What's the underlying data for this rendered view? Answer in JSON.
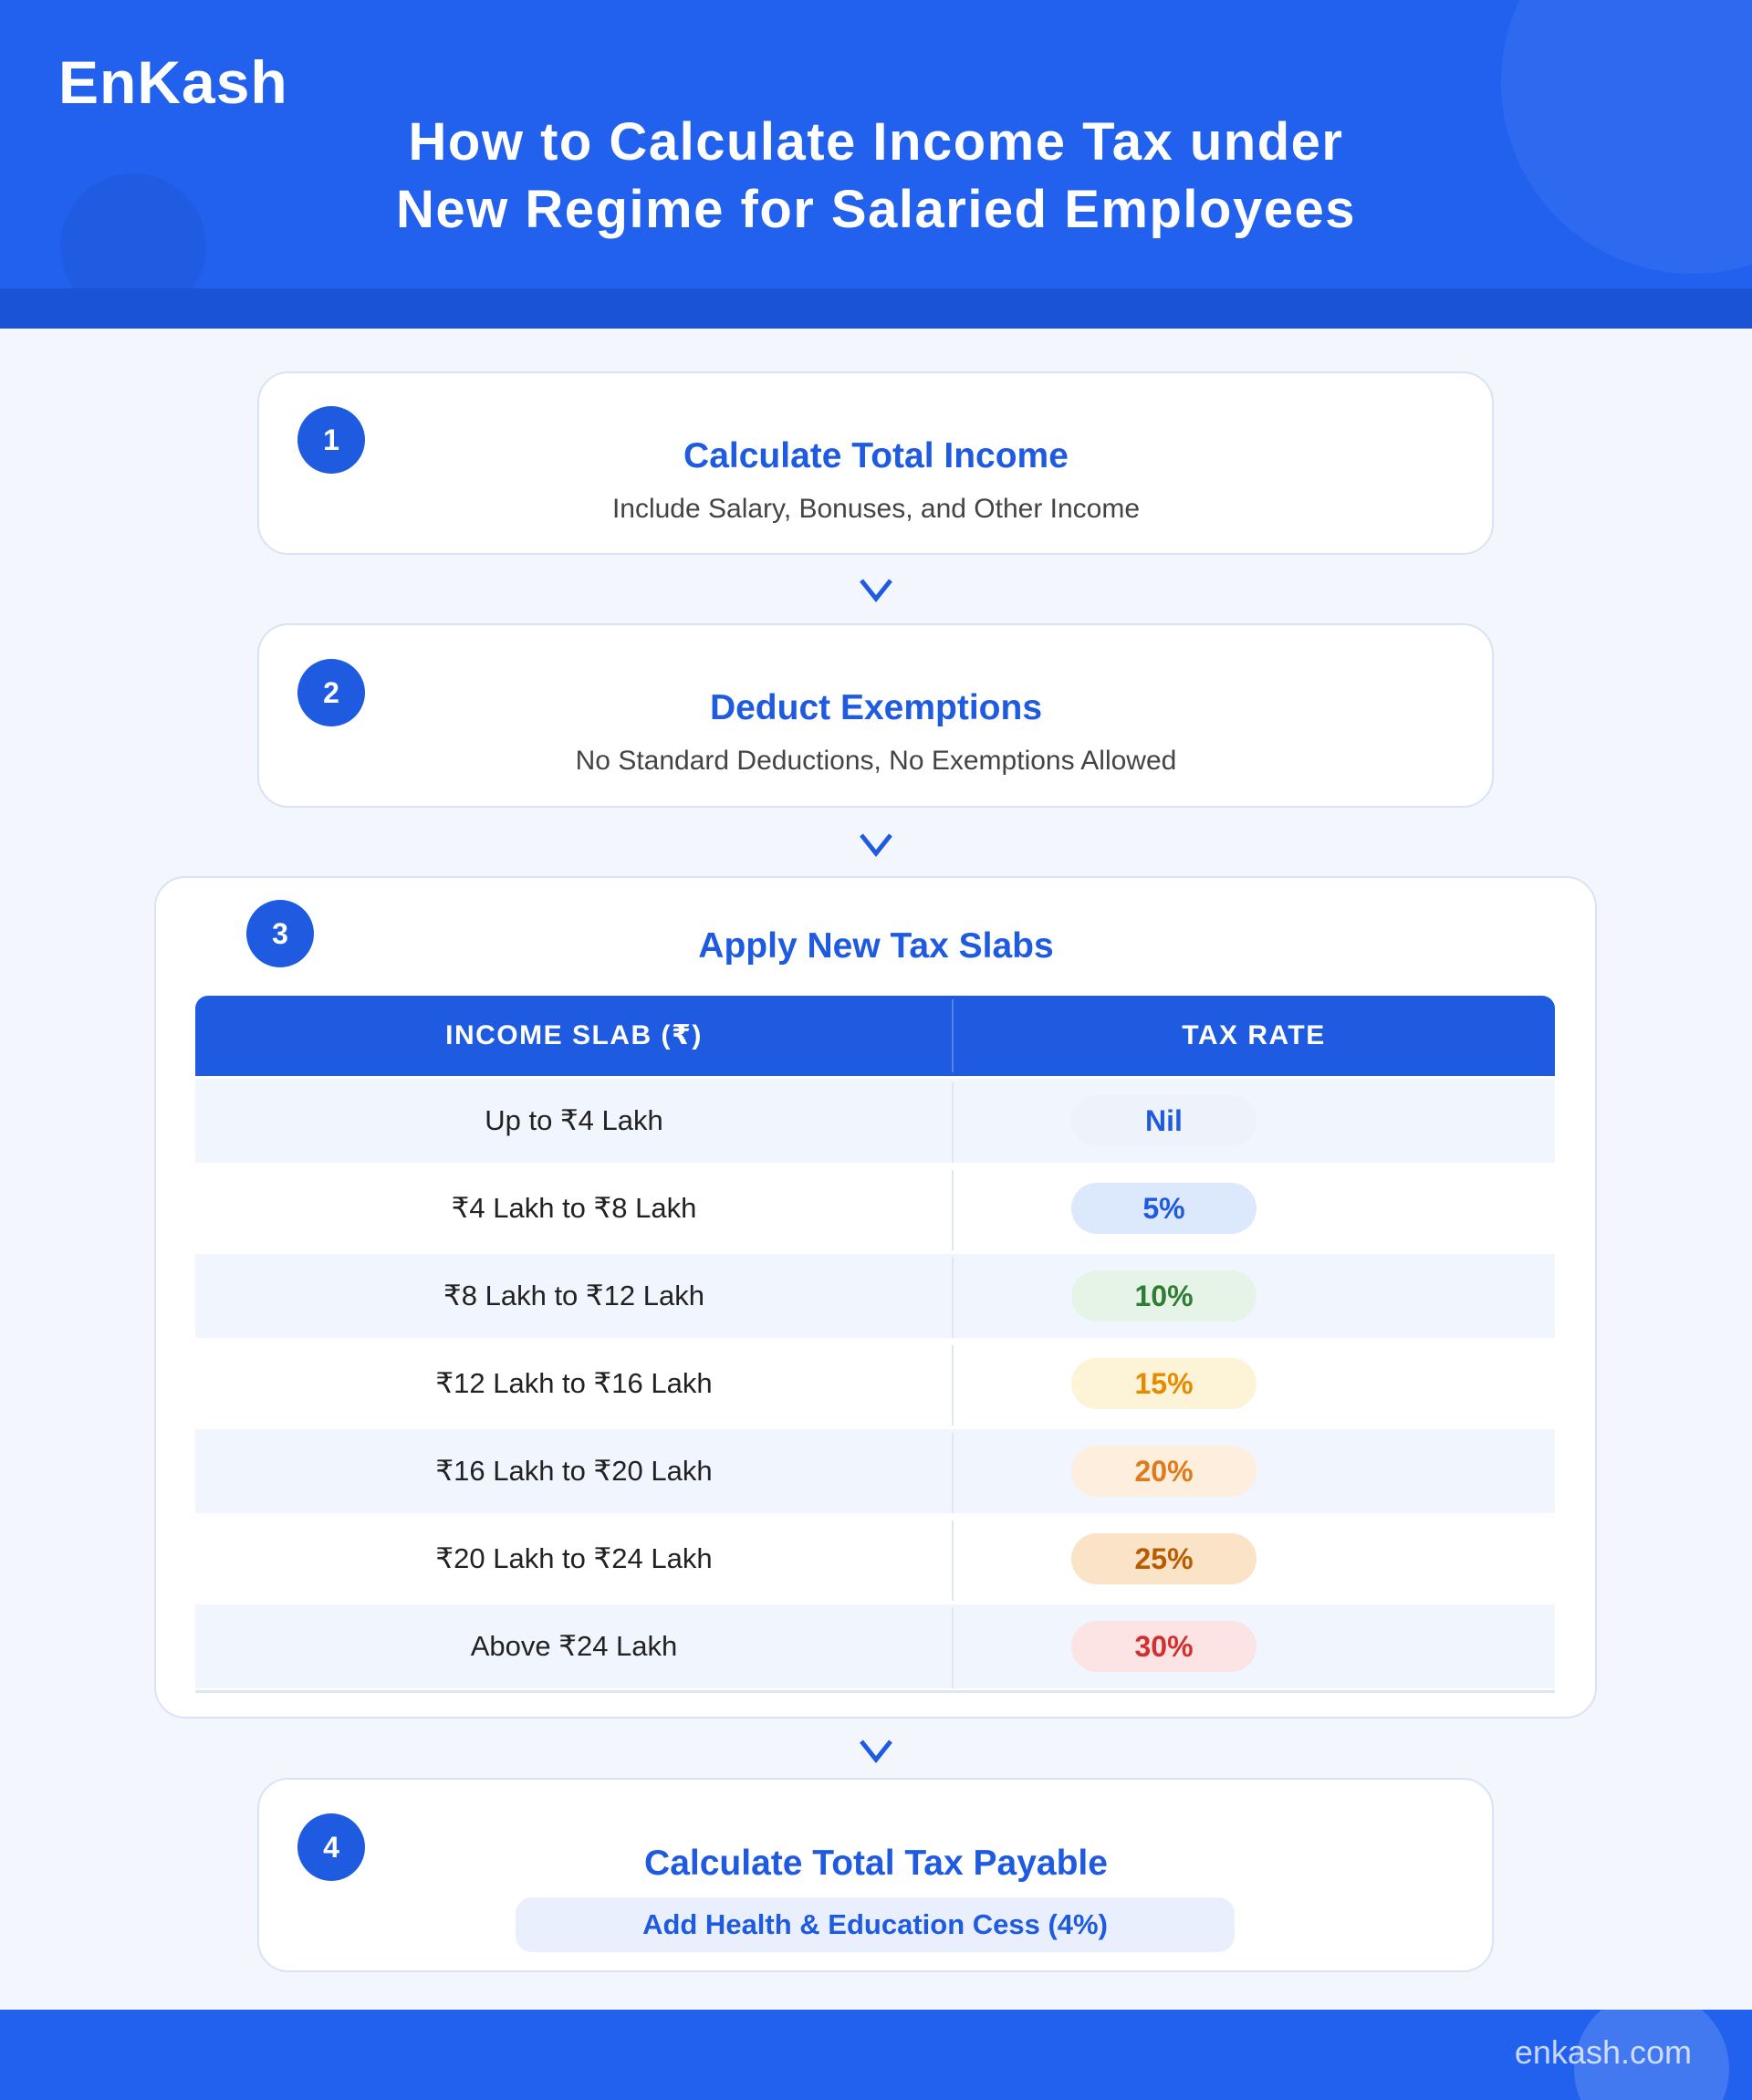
{
  "header": {
    "logo": "EnKash",
    "title_lines": [
      "How to Calculate Income Tax under",
      "New Regime for Salaried Employees"
    ]
  },
  "steps": [
    {
      "number": "1",
      "title": "Calculate Total Income",
      "description": "Include Salary, Bonuses, and Other Income"
    },
    {
      "number": "2",
      "title": "Deduct Exemptions",
      "description": "No Standard Deductions, No Exemptions Allowed"
    },
    {
      "number": "3",
      "title": "Apply New Tax Slabs"
    },
    {
      "number": "4",
      "title": "Calculate Total Tax Payable",
      "description": "Add Health & Education Cess (4%)"
    }
  ],
  "table": {
    "headers": [
      "INCOME SLAB (₹)",
      "TAX RATE"
    ],
    "rows": [
      [
        "Up to ₹4 Lakh",
        "Nil"
      ],
      [
        "₹4 Lakh to ₹8 Lakh",
        "5%"
      ],
      [
        "₹8 Lakh to ₹12 Lakh",
        "10%"
      ],
      [
        "₹12 Lakh to ₹16 Lakh",
        "15%"
      ],
      [
        "₹16 Lakh to ₹20 Lakh",
        "20%"
      ],
      [
        "₹20 Lakh to ₹24 Lakh",
        "25%"
      ],
      [
        "Above ₹24 Lakh",
        "30%"
      ]
    ]
  },
  "footer": {
    "website": "enkash.com"
  }
}
